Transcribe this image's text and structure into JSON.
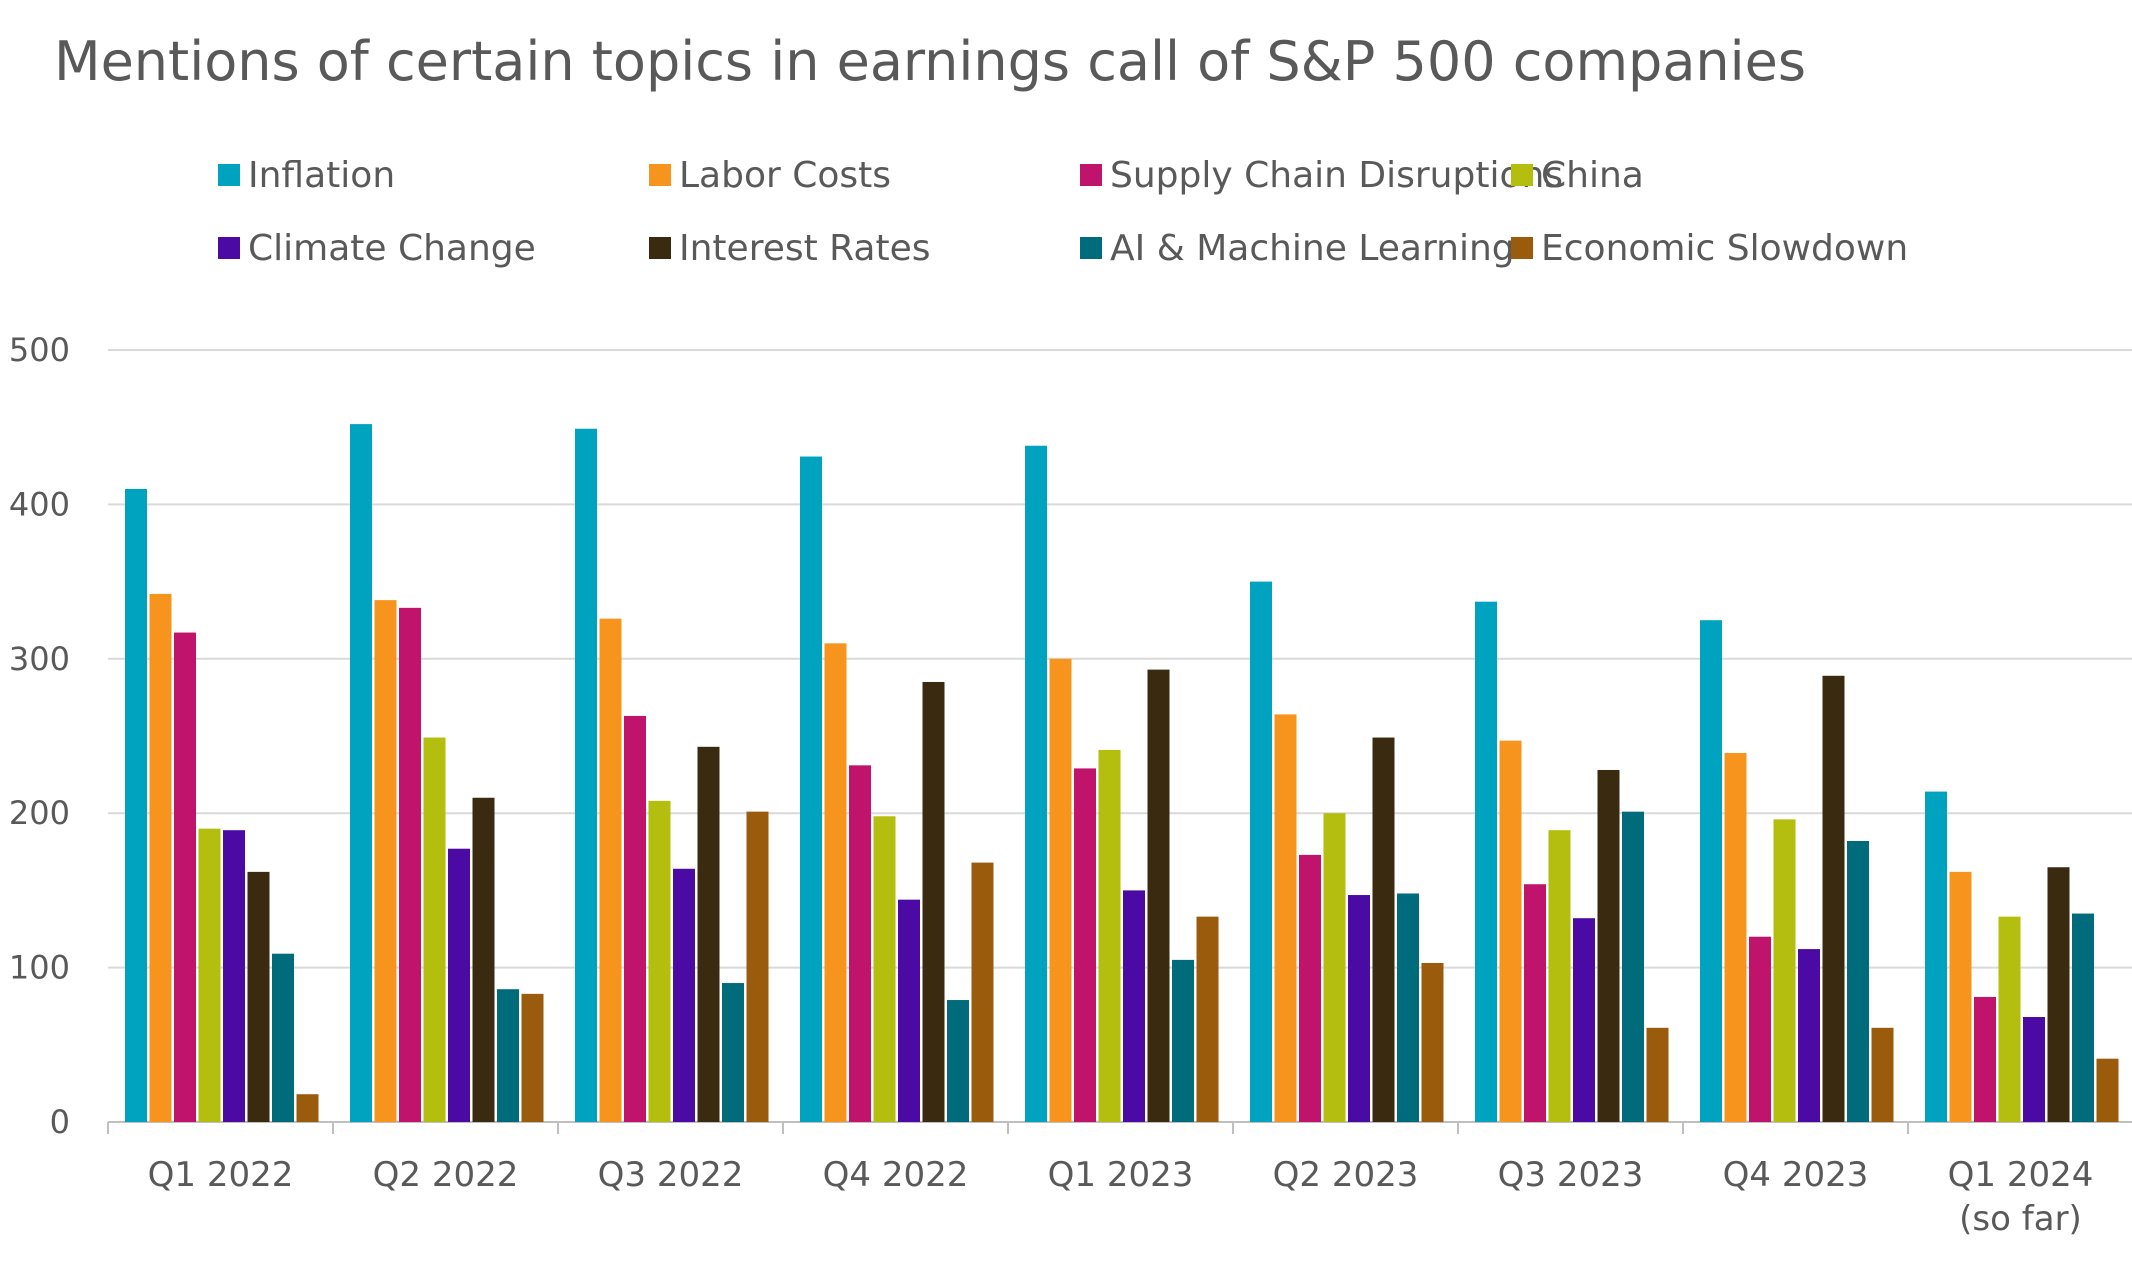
{
  "chart_data": {
    "type": "bar",
    "title": "Mentions of certain topics in earnings call of S&P 500 companies",
    "xlabel": "",
    "ylabel": "",
    "ylim": [
      0,
      500
    ],
    "yticks": [
      0,
      100,
      200,
      300,
      400,
      500
    ],
    "grid": true,
    "legend_position": "top",
    "categories": [
      [
        "Q1 2022"
      ],
      [
        "Q2 2022"
      ],
      [
        "Q3 2022"
      ],
      [
        "Q4 2022"
      ],
      [
        "Q1 2023"
      ],
      [
        "Q2 2023"
      ],
      [
        "Q3 2023"
      ],
      [
        "Q4 2023"
      ],
      [
        "Q1 2024",
        "(so far)"
      ]
    ],
    "series": [
      {
        "name": "Inflation",
        "color": "#00A3BF",
        "values": [
          410,
          452,
          449,
          431,
          438,
          350,
          337,
          325,
          214
        ]
      },
      {
        "name": "Labor Costs",
        "color": "#F7941D",
        "values": [
          342,
          338,
          326,
          310,
          300,
          264,
          247,
          239,
          162
        ]
      },
      {
        "name": "Supply Chain Disruptions",
        "color": "#C0136B",
        "values": [
          317,
          333,
          263,
          231,
          229,
          173,
          154,
          120,
          81
        ]
      },
      {
        "name": "China",
        "color": "#B3BE0E",
        "values": [
          190,
          249,
          208,
          198,
          241,
          200,
          189,
          196,
          133
        ]
      },
      {
        "name": "Climate Change",
        "color": "#4B0AA3",
        "values": [
          189,
          177,
          164,
          144,
          150,
          147,
          132,
          112,
          68
        ]
      },
      {
        "name": "Interest Rates",
        "color": "#3A2A10",
        "values": [
          162,
          210,
          243,
          285,
          293,
          249,
          228,
          289,
          165
        ]
      },
      {
        "name": "AI & Machine Learning",
        "color": "#006B7A",
        "values": [
          109,
          86,
          90,
          79,
          105,
          148,
          201,
          182,
          135
        ]
      },
      {
        "name": "Economic Slowdown",
        "color": "#9A5B0C",
        "values": [
          18,
          83,
          201,
          168,
          133,
          103,
          61,
          61,
          41
        ]
      }
    ]
  }
}
